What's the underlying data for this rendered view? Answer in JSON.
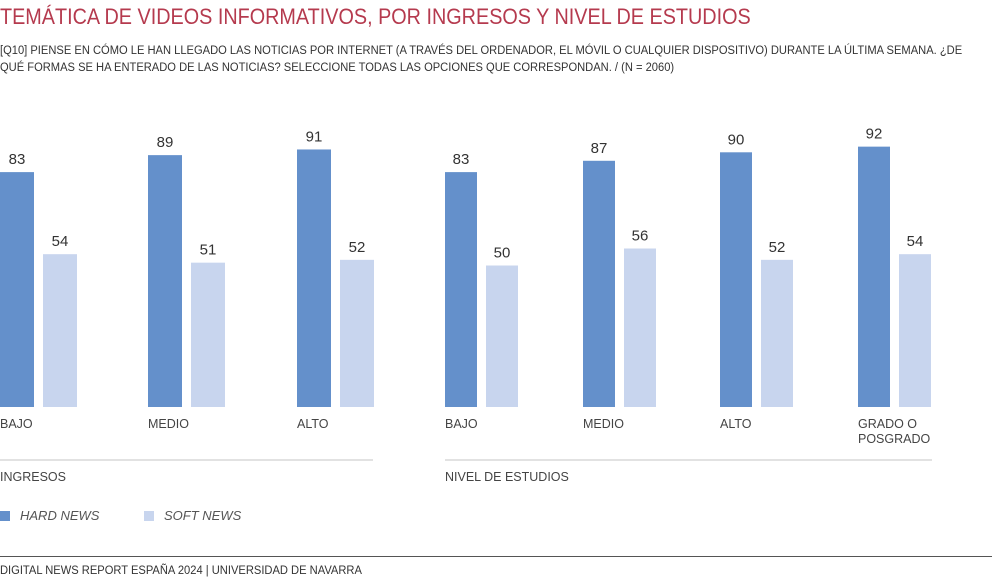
{
  "title": "TEMÁTICA DE VIDEOS INFORMATIVOS, POR INGRESOS Y NIVEL DE ESTUDIOS",
  "subtitle": "[Q10] PIENSE EN CÓMO LE HAN LLEGADO LAS NOTICIAS POR INTERNET (A TRAVÉS DEL ORDENADOR, EL MÓVIL O CUALQUIER DISPOSITIVO) DURANTE LA ÚLTIMA SEMANA. ¿DE QUÉ FORMAS SE HA ENTERADO DE LAS NOTICIAS? SELECCIONE TODAS LAS OPCIONES QUE CORRESPONDAN. / (N = 2060)",
  "footer": "DIGITAL NEWS REPORT ESPAÑA 2024 | UNIVERSIDAD DE NAVARRA",
  "colors": {
    "hard": "#6490cb",
    "soft": "#c8d5ee",
    "title": "#b53a4e"
  },
  "legend": [
    {
      "label": "HARD NEWS",
      "color": "#6490cb"
    },
    {
      "label": "SOFT NEWS",
      "color": "#c8d5ee"
    }
  ],
  "chart_data": [
    {
      "type": "bar",
      "title": "INGRESOS",
      "categories": [
        "BAJO",
        "MEDIO",
        "ALTO"
      ],
      "series": [
        {
          "name": "HARD NEWS",
          "values": [
            83,
            89,
            91
          ]
        },
        {
          "name": "SOFT NEWS",
          "values": [
            54,
            51,
            52
          ]
        }
      ],
      "ylim": [
        0,
        100
      ],
      "grid": false,
      "legend": "bottom-left"
    },
    {
      "type": "bar",
      "title": "NIVEL DE ESTUDIOS",
      "categories": [
        "BAJO",
        "MEDIO",
        "ALTO",
        "GRADO O POSGRADO"
      ],
      "series": [
        {
          "name": "HARD NEWS",
          "values": [
            83,
            87,
            90,
            92
          ]
        },
        {
          "name": "SOFT NEWS",
          "values": [
            50,
            56,
            52,
            54
          ]
        }
      ],
      "ylim": [
        0,
        100
      ],
      "grid": false,
      "legend": "bottom-left"
    }
  ]
}
